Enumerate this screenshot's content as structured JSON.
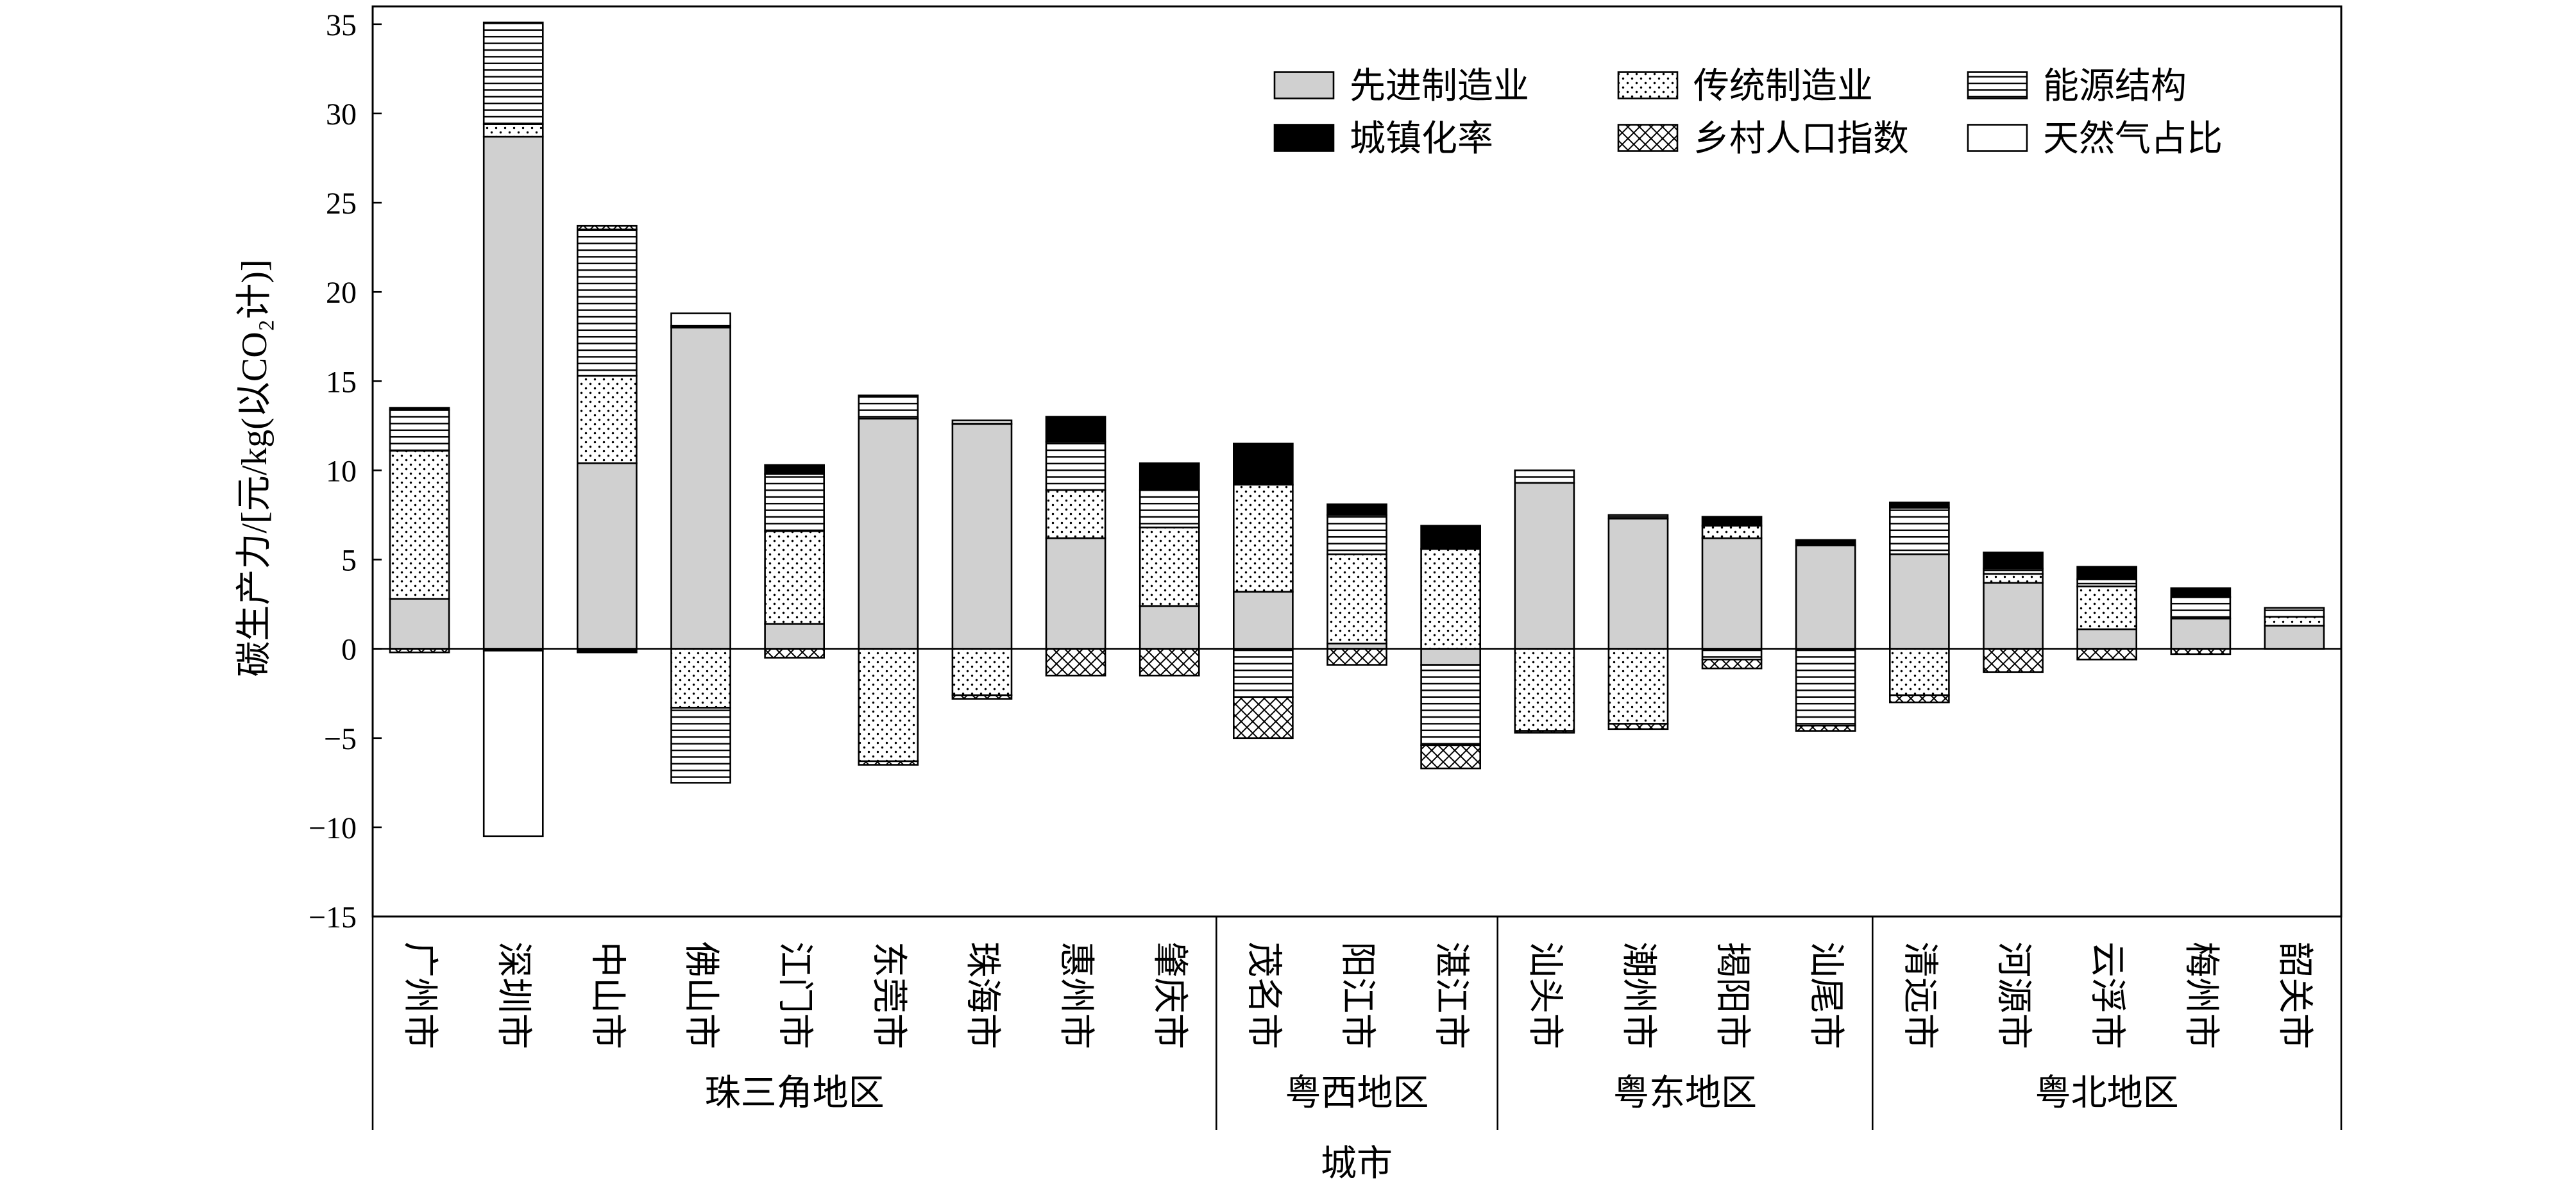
{
  "chart_data": {
    "type": "bar",
    "stacked": true,
    "title": "",
    "xlabel": "城市",
    "ylabel": "碳生产力/[元/kg(以CO₂计)]",
    "ylim": [
      -15,
      36
    ],
    "yticks": [
      35,
      30,
      25,
      20,
      15,
      10,
      5,
      0,
      -5,
      -10,
      -15
    ],
    "ytick_labels": [
      "35",
      "30",
      "25",
      "20",
      "15",
      "10",
      "5",
      "0",
      "−5",
      "−10",
      "−15"
    ],
    "grid": false,
    "legend_position": "top-right",
    "groups": [
      {
        "name": "珠三角地区",
        "categories": [
          "广州市",
          "深圳市",
          "中山市",
          "佛山市",
          "江门市",
          "东莞市",
          "珠海市",
          "惠州市",
          "肇庆市"
        ]
      },
      {
        "name": "粤西地区",
        "categories": [
          "茂名市",
          "阳江市",
          "湛江市"
        ]
      },
      {
        "name": "粤东地区",
        "categories": [
          "汕头市",
          "潮州市",
          "揭阳市",
          "汕尾市"
        ]
      },
      {
        "name": "粤北地区",
        "categories": [
          "清远市",
          "河源市",
          "云浮市",
          "梅州市",
          "韶关市"
        ]
      }
    ],
    "series": [
      {
        "name": "先进制造业",
        "fill": "#d0d0d0",
        "values": [
          2.8,
          28.7,
          10.4,
          18.0,
          1.4,
          12.9,
          12.6,
          6.2,
          2.4,
          3.2,
          0.3,
          -0.9,
          9.3,
          7.3,
          6.2,
          5.8,
          5.3,
          3.7,
          1.1,
          1.7,
          1.3
        ]
      },
      {
        "name": "传统制造业",
        "fill": "dots",
        "values": [
          8.3,
          0.7,
          4.9,
          -3.3,
          5.2,
          -6.3,
          -2.6,
          2.7,
          4.4,
          6.0,
          5.0,
          5.6,
          -4.6,
          -4.2,
          0.7,
          0,
          -2.6,
          0.5,
          2.4,
          0,
          0.5
        ]
      },
      {
        "name": "能源结构",
        "fill": "hlines",
        "values": [
          2.3,
          5.7,
          8.2,
          -4.2,
          3.2,
          1.3,
          0.2,
          2.7,
          2.1,
          -2.7,
          2.2,
          -4.5,
          0.7,
          0.2,
          -0.6,
          -4.3,
          2.6,
          0.3,
          0.4,
          1.2,
          0.5
        ]
      },
      {
        "name": "城镇化率",
        "fill": "#000000",
        "values": [
          0.1,
          -0.1,
          -0.2,
          0.1,
          0.5,
          0,
          0,
          1.4,
          1.5,
          2.3,
          0.6,
          1.3,
          0,
          0,
          0.5,
          0.3,
          0.3,
          0.9,
          0.7,
          0.5,
          0
        ]
      },
      {
        "name": "乡村人口指数",
        "fill": "crosshatch",
        "values": [
          -0.2,
          0,
          0.2,
          0,
          -0.5,
          -0.2,
          -0.2,
          -1.5,
          -1.5,
          -2.3,
          -0.9,
          -1.3,
          -0.1,
          -0.3,
          -0.5,
          -0.3,
          -0.4,
          -1.3,
          -0.6,
          -0.3,
          0
        ]
      },
      {
        "name": "天然气占比",
        "fill": "#ffffff",
        "values": [
          0,
          -10.4,
          0,
          0.7,
          0,
          0,
          0,
          0,
          0,
          0,
          0,
          0,
          0,
          0,
          0,
          0,
          0,
          0,
          0,
          0,
          0
        ]
      }
    ]
  }
}
